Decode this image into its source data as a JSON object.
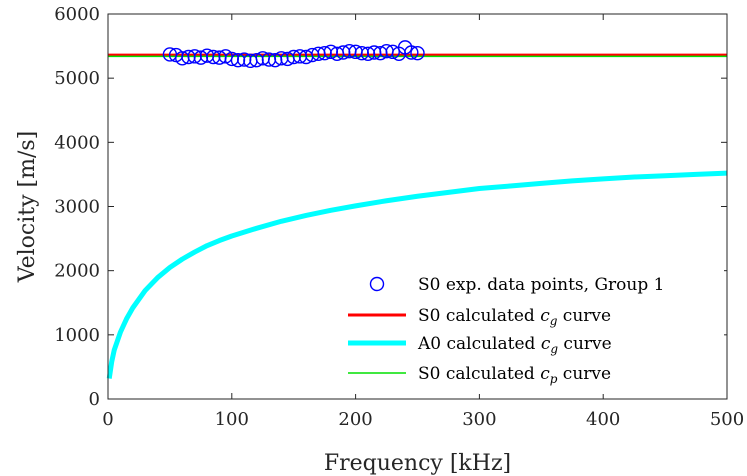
{
  "chart_data": {
    "type": "line",
    "title": "",
    "xlabel": "Frequency [kHz]",
    "ylabel": "Velocity [m/s]",
    "xlim": [
      0,
      500
    ],
    "ylim": [
      0,
      6000
    ],
    "xticks": [
      "0",
      "100",
      "200",
      "300",
      "400",
      "500"
    ],
    "yticks": [
      "0",
      "1000",
      "2000",
      "3000",
      "4000",
      "5000",
      "6000"
    ],
    "grid": false,
    "legend_position": "bottom-right",
    "series": [
      {
        "name": "S0 exp. data points, Group 1",
        "kind": "scatter",
        "marker": "circle-open",
        "color": "#0000ff",
        "x": [
          50,
          55,
          60,
          65,
          70,
          75,
          80,
          85,
          90,
          95,
          100,
          105,
          110,
          115,
          120,
          125,
          130,
          135,
          140,
          145,
          150,
          155,
          160,
          165,
          170,
          175,
          180,
          185,
          190,
          195,
          200,
          205,
          210,
          215,
          220,
          225,
          230,
          235,
          240,
          245,
          250
        ],
        "y": [
          5370,
          5360,
          5310,
          5330,
          5340,
          5320,
          5350,
          5330,
          5320,
          5340,
          5300,
          5280,
          5290,
          5270,
          5280,
          5310,
          5290,
          5280,
          5310,
          5300,
          5330,
          5340,
          5330,
          5360,
          5380,
          5390,
          5410,
          5380,
          5400,
          5420,
          5410,
          5390,
          5380,
          5400,
          5390,
          5420,
          5410,
          5380,
          5480,
          5400,
          5390
        ]
      },
      {
        "name_prefix": "S0 calculated ",
        "name_symbol": "c",
        "name_subscript": "g",
        "name_suffix": " curve",
        "kind": "line",
        "color": "#ff0000",
        "x": [
          0,
          500
        ],
        "y": [
          5360,
          5360
        ]
      },
      {
        "name_prefix": "A0 calculated ",
        "name_symbol": "c",
        "name_subscript": "g",
        "name_suffix": " curve",
        "kind": "line",
        "color": "#00ffff",
        "x": [
          1,
          3,
          5,
          10,
          15,
          20,
          30,
          40,
          50,
          60,
          70,
          80,
          90,
          100,
          120,
          140,
          160,
          180,
          200,
          225,
          250,
          275,
          300,
          325,
          350,
          375,
          400,
          425,
          450,
          475,
          500
        ],
        "y": [
          320,
          580,
          760,
          1040,
          1250,
          1420,
          1690,
          1890,
          2050,
          2180,
          2290,
          2390,
          2470,
          2540,
          2660,
          2770,
          2860,
          2940,
          3010,
          3090,
          3160,
          3220,
          3280,
          3320,
          3360,
          3400,
          3430,
          3460,
          3480,
          3500,
          3520
        ]
      },
      {
        "name_prefix": "S0 calculated ",
        "name_symbol": "c",
        "name_subscript": "p",
        "name_suffix": " curve",
        "kind": "line",
        "color": "#00e000",
        "x": [
          0,
          500
        ],
        "y": [
          5340,
          5340
        ]
      }
    ]
  }
}
